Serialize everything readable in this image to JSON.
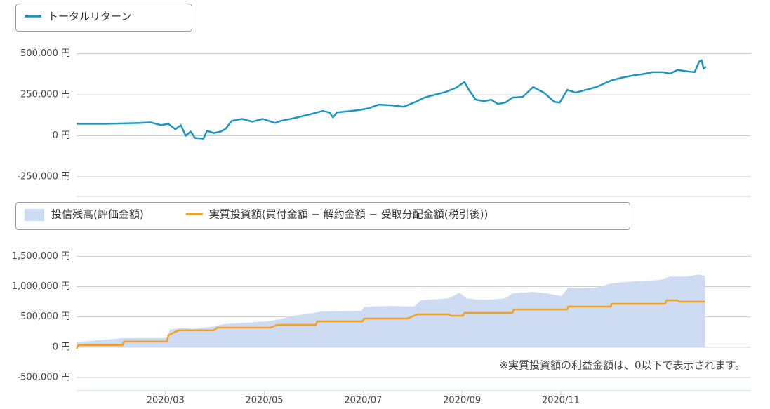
{
  "chart_data": [
    {
      "type": "line",
      "xlim": [
        1.2,
        14.85
      ],
      "ylim": [
        -370000,
        550000
      ],
      "yticks": [
        {
          "value": 500000,
          "label": "500,000 円"
        },
        {
          "value": 250000,
          "label": "250,000 円"
        },
        {
          "value": 0,
          "label": "0 円"
        },
        {
          "value": -250000,
          "label": "-250,000 円"
        }
      ],
      "grid": true,
      "series": [
        {
          "name": "トータルリターン",
          "color": "#1a96c4",
          "type": "line",
          "x": [
            1.2,
            1.78,
            2.49,
            2.7,
            2.91,
            3.06,
            3.2,
            3.31,
            3.41,
            3.51,
            3.6,
            3.77,
            3.84,
            3.98,
            4.12,
            4.22,
            4.34,
            4.55,
            4.76,
            4.97,
            5.22,
            5.33,
            5.61,
            5.9,
            6.18,
            6.32,
            6.39,
            6.47,
            6.75,
            6.96,
            7.11,
            7.32,
            7.6,
            7.82,
            8.03,
            8.24,
            8.45,
            8.67,
            8.88,
            9.05,
            9.14,
            9.28,
            9.45,
            9.59,
            9.73,
            9.88,
            10.02,
            10.23,
            10.44,
            10.66,
            10.87,
            10.98,
            11.13,
            11.3,
            11.51,
            11.72,
            12.01,
            12.22,
            12.43,
            12.64,
            12.86,
            13.07,
            13.21,
            13.36,
            13.57,
            13.71,
            13.8,
            13.85,
            13.89,
            13.94
          ],
          "values": [
            73000,
            73000,
            78000,
            82000,
            65000,
            73000,
            39000,
            65000,
            0,
            26000,
            -13000,
            -17000,
            30000,
            17000,
            26000,
            43000,
            91000,
            103000,
            86000,
            103000,
            78000,
            91000,
            108000,
            129000,
            151000,
            142000,
            112000,
            142000,
            151000,
            159000,
            168000,
            190000,
            185000,
            177000,
            203000,
            233000,
            250000,
            267000,
            293000,
            328000,
            280000,
            220000,
            211000,
            220000,
            194000,
            203000,
            233000,
            237000,
            297000,
            263000,
            207000,
            203000,
            280000,
            263000,
            280000,
            297000,
            336000,
            353000,
            366000,
            375000,
            388000,
            388000,
            379000,
            401000,
            392000,
            388000,
            453000,
            461000,
            409000,
            422000
          ]
        }
      ]
    },
    {
      "type": "line",
      "xlim": [
        1.2,
        14.85
      ],
      "ylim": [
        -720000,
        1620000
      ],
      "yticks": [
        {
          "value": 1500000,
          "label": "1,500,000 円"
        },
        {
          "value": 1000000,
          "label": "1,000,000 円"
        },
        {
          "value": 500000,
          "label": "500,000 円"
        },
        {
          "value": 0,
          "label": "0 円"
        },
        {
          "value": -500000,
          "label": "-500,000 円"
        }
      ],
      "xticks": [
        {
          "value": 3,
          "label": "2020/03"
        },
        {
          "value": 5,
          "label": "2020/05"
        },
        {
          "value": 7,
          "label": "2020/07"
        },
        {
          "value": 9,
          "label": "2020/09"
        },
        {
          "value": 11,
          "label": "2020/11"
        }
      ],
      "grid": true,
      "annotation": "※実質投資額の利益金額は、0以下で表示されます。",
      "series": [
        {
          "name": "投信残高(評価金額)",
          "color": "#cddcf3",
          "type": "area",
          "x": [
            1.2,
            2.13,
            3.03,
            3.09,
            3.34,
            3.55,
            3.91,
            4.19,
            5.05,
            5.33,
            5.61,
            6.18,
            6.96,
            7.03,
            7.6,
            8.03,
            8.17,
            8.74,
            8.95,
            9.09,
            9.31,
            9.59,
            9.88,
            10.02,
            10.44,
            10.73,
            11.01,
            11.15,
            11.37,
            11.72,
            12.01,
            12.43,
            13.0,
            13.21,
            13.57,
            13.78,
            13.92
          ],
          "values": [
            81000,
            150000,
            150000,
            289000,
            323000,
            300000,
            335000,
            381000,
            427000,
            462000,
            520000,
            589000,
            600000,
            670000,
            681000,
            670000,
            774000,
            808000,
            901000,
            808000,
            785000,
            785000,
            808000,
            889000,
            912000,
            889000,
            843000,
            981000,
            970000,
            981000,
            1051000,
            1085000,
            1109000,
            1166000,
            1166000,
            1201000,
            1178000
          ]
        },
        {
          "name": "実質投資額(買付金額 − 解約金額 − 受取分配金額(税引後))",
          "color": "#f5a01a",
          "type": "line",
          "x": [
            1.2,
            1.24,
            2.13,
            2.16,
            3.03,
            3.06,
            3.17,
            3.27,
            3.98,
            4.05,
            5.12,
            5.26,
            6.04,
            6.07,
            6.99,
            7.02,
            7.89,
            8.1,
            8.74,
            8.77,
            9.02,
            9.05,
            10.02,
            10.05,
            11.13,
            11.15,
            12.01,
            12.03,
            13.11,
            13.14,
            13.36,
            13.4,
            13.92
          ],
          "values": [
            -23000,
            35000,
            35000,
            92000,
            92000,
            196000,
            242000,
            277000,
            277000,
            323000,
            323000,
            369000,
            369000,
            427000,
            427000,
            473000,
            473000,
            543000,
            543000,
            520000,
            520000,
            566000,
            566000,
            624000,
            624000,
            670000,
            670000,
            716000,
            716000,
            774000,
            774000,
            751000,
            751000
          ]
        }
      ]
    }
  ]
}
